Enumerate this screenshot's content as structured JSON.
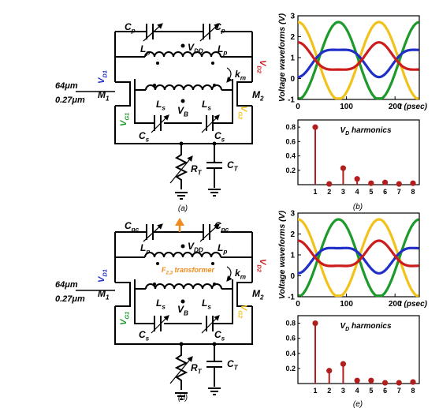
{
  "colors": {
    "blue": "#1f2fc8",
    "red": "#cc1c1c",
    "green": "#1c9a2a",
    "yellow": "#f2c21a",
    "orange": "#f08a1c",
    "stem": "#b01e1e"
  },
  "circuit_labels": {
    "cp": "C",
    "cp_sub": "p",
    "cpc": "C",
    "cpc_sub": "pc",
    "lp": "L",
    "lp_sub": "p",
    "ls": "L",
    "ls_sub": "s",
    "vdd": "V",
    "vdd_sub": "DD",
    "vb": "V",
    "vb_sub": "B",
    "vd1": "V",
    "vd1_sub": "D1",
    "vd2": "V",
    "vd2_sub": "D2",
    "vg1": "V",
    "vg1_sub": "G1",
    "vg2": "V",
    "vg2_sub": "G2",
    "km": "k",
    "km_sub": "m",
    "m1": "M",
    "m1_sub": "1",
    "m2": "M",
    "m2_sub": "2",
    "cs": "C",
    "cs_sub": "s",
    "rt": "R",
    "rt_sub": "T",
    "ct": "C",
    "ct_sub": "T",
    "width": "64μm",
    "length": "0.27μm",
    "transformer": "F",
    "transformer_sub": "2,3",
    "transformer_rest": " transformer"
  },
  "captions": {
    "a": "(a)",
    "b": "(b)",
    "d": "(d)",
    "e": "(e)"
  },
  "chart_data": [
    {
      "type": "line",
      "ylabel": "Voltage waveforms (V)",
      "xlabel": "t (psec)",
      "x_ticks": [
        "0",
        "100",
        "200"
      ],
      "y_ticks": [
        "3",
        "2",
        "1",
        "0",
        "-1"
      ],
      "xlim": [
        0,
        250
      ],
      "ylim": [
        -1,
        3
      ],
      "period_psec": 167,
      "series": [
        {
          "color": "yellow",
          "offset": 0.85,
          "amplitude": 1.85,
          "phase": 0.0
        },
        {
          "color": "green",
          "offset": 0.85,
          "amplitude": 1.85,
          "phase": 3.14
        },
        {
          "color": "blue",
          "offset": 0.9,
          "amplitude": 0.65,
          "phase": 3.14
        },
        {
          "color": "red",
          "offset": 0.9,
          "amplitude": 0.65,
          "phase": 0.0
        }
      ]
    },
    {
      "type": "bar",
      "title": "V",
      "title_sub": "D",
      "title_rest": " harmonics",
      "categories": [
        "1",
        "2",
        "3",
        "4",
        "5",
        "6",
        "7",
        "8"
      ],
      "values": [
        0.8,
        0.01,
        0.23,
        0.08,
        0.02,
        0.03,
        0.01,
        0.02
      ],
      "y_ticks": [
        "0.8",
        "0.6",
        "0.4",
        "0.2"
      ],
      "ylim": [
        0,
        0.9
      ]
    },
    {
      "type": "line",
      "ylabel": "Voltage waveforms (V)",
      "xlabel": "t (psec)",
      "x_ticks": [
        "0",
        "100",
        "200"
      ],
      "y_ticks": [
        "3",
        "2",
        "1",
        "0",
        "-1"
      ],
      "xlim": [
        0,
        250
      ],
      "ylim": [
        -1,
        3
      ],
      "period_psec": 167,
      "series": [
        {
          "color": "yellow",
          "offset": 0.85,
          "amplitude": 1.85,
          "phase": 0.0
        },
        {
          "color": "green",
          "offset": 0.85,
          "amplitude": 1.85,
          "phase": 3.14
        },
        {
          "color": "blue",
          "offset": 0.9,
          "amplitude": 0.6,
          "phase": 3.14
        },
        {
          "color": "red",
          "offset": 0.9,
          "amplitude": 0.6,
          "phase": 0.0
        }
      ]
    },
    {
      "type": "bar",
      "title": "V",
      "title_sub": "D",
      "title_rest": " harmonics",
      "categories": [
        "1",
        "2",
        "3",
        "4",
        "5",
        "6",
        "7",
        "8"
      ],
      "values": [
        0.8,
        0.17,
        0.26,
        0.04,
        0.04,
        0.01,
        0.01,
        0.02
      ],
      "y_ticks": [
        "0.8",
        "0.6",
        "0.4",
        "0.2"
      ],
      "ylim": [
        0,
        0.9
      ]
    }
  ]
}
